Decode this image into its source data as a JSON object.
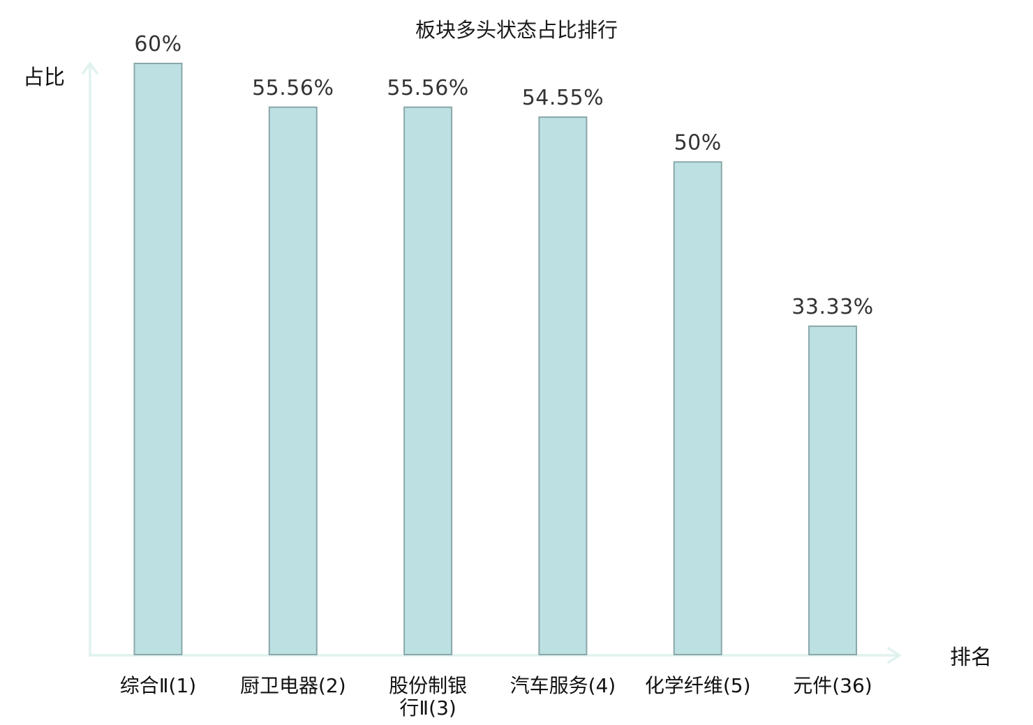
{
  "chart_data": {
    "type": "bar",
    "title": "板块多头状态占比排行",
    "ylabel": "占比",
    "xlabel": "排名",
    "categories": [
      [
        "综合Ⅱ(1)"
      ],
      [
        "厨卫电器(2)"
      ],
      [
        "股份制银",
        "行Ⅱ(3)"
      ],
      [
        "汽车服务(4)"
      ],
      [
        "化学纤维(5)"
      ],
      [
        "元件(36)"
      ]
    ],
    "values": [
      60,
      55.56,
      55.56,
      54.55,
      50,
      33.33
    ],
    "value_labels": [
      "60%",
      "55.56%",
      "55.56%",
      "54.55%",
      "50%",
      "33.33%"
    ],
    "highlight_index": 5,
    "ylim": [
      0,
      60
    ],
    "grid": false,
    "colors": {
      "bar_fill": "#bde0e2",
      "bar_stroke": "#8aa7a9",
      "axis": "#e0f2ef",
      "highlight_text": "#e02020",
      "text": "#111111",
      "value_text": "#333333"
    }
  }
}
